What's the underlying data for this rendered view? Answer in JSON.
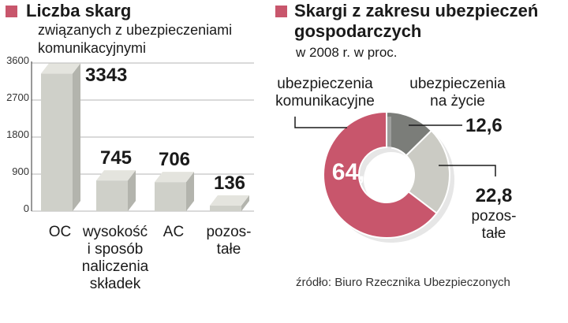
{
  "left_panel": {
    "title": "Liczba skarg",
    "subtitle_line1": "związanych z ubezpieczeniami",
    "subtitle_line2": "komunikacyjnymi"
  },
  "right_panel": {
    "title_line1": "Skargi z zakresu ubezpieczeń",
    "title_line2": "gospodarczych",
    "subtitle": "w 2008 r. w proc."
  },
  "source": "źródło: Biuro Rzecznika Ubezpieczonych",
  "colors": {
    "accent": "#c8566c",
    "bar_front": "#cfd0c9",
    "bar_top": "#e4e4de",
    "bar_side": "#b3b4ad",
    "pie_komunikacyjne": "#c8566c",
    "pie_zycie": "#7b7d79",
    "pie_pozostale": "#cbcbc4"
  },
  "chart_data": [
    {
      "type": "bar",
      "title": "Liczba skarg",
      "categories": [
        [
          "OC"
        ],
        [
          "wysokość",
          "i sposób",
          "naliczenia",
          "składek"
        ],
        [
          "AC"
        ],
        [
          "pozos-",
          "tałe"
        ]
      ],
      "values": [
        3343,
        745,
        706,
        136
      ],
      "data_labels": [
        "3343",
        "745",
        "706",
        "136"
      ],
      "yticks": [
        "0",
        "900",
        "1800",
        "2700",
        "3600"
      ],
      "ylim": [
        0,
        3600
      ],
      "grid": true
    },
    {
      "type": "pie",
      "title": "Skargi z zakresu ubezpieczeń gospodarczych",
      "slices": [
        {
          "label_lines": [
            "ubezpieczenia",
            "komunikacyjne"
          ],
          "value": 64.6,
          "value_label": "64,6"
        },
        {
          "label_lines": [
            "ubezpieczenia",
            "na życie"
          ],
          "value": 12.6,
          "value_label": "12,6"
        },
        {
          "label_lines": [
            "pozos-",
            "tałe"
          ],
          "value": 22.8,
          "value_label": "22,8"
        }
      ]
    }
  ]
}
